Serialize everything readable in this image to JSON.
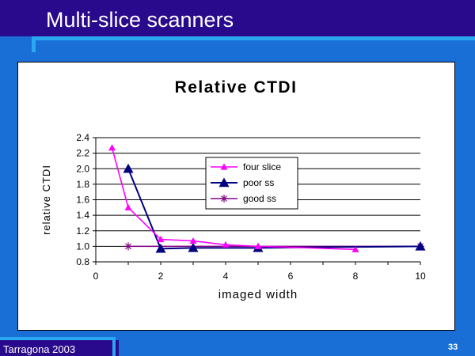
{
  "slide": {
    "title": "Multi-slice scanners",
    "footer": "Tarragona 2003",
    "page_number": "33"
  },
  "colors": {
    "background": "#1a6fd6",
    "topbar": "#2a0a8c",
    "accent": "#2aa7f0",
    "four_slice": "#ff00ff",
    "poor_ss": "#000080",
    "good_ss": "#800080"
  },
  "chart_data": {
    "type": "line",
    "title": "Relative CTDI",
    "xlabel": "imaged width",
    "ylabel": "relative CTDI",
    "xlim": [
      0,
      10
    ],
    "ylim": [
      0.8,
      2.4
    ],
    "x_ticks": [
      0,
      2,
      4,
      6,
      8,
      10
    ],
    "y_ticks": [
      "0.8",
      "1.0",
      "1.2",
      "1.4",
      "1.6",
      "1.8",
      "2.0",
      "2.2",
      "2.4"
    ],
    "grid": "horizontal",
    "legend_position": "inside-center",
    "series": [
      {
        "name": "four slice",
        "marker": "triangle",
        "color": "#ff00ff",
        "x": [
          0.5,
          1,
          2,
          3,
          4,
          5,
          8
        ],
        "y": [
          2.27,
          1.5,
          1.09,
          1.07,
          1.02,
          1.0,
          0.96
        ]
      },
      {
        "name": "poor ss",
        "marker": "triangle",
        "color": "#000080",
        "x": [
          1,
          2,
          3,
          5,
          10
        ],
        "y": [
          2.0,
          0.97,
          0.98,
          0.98,
          1.0
        ]
      },
      {
        "name": "good ss",
        "marker": "star",
        "color": "#800080",
        "x": [
          1,
          10
        ],
        "y": [
          1.0,
          1.0
        ]
      }
    ]
  }
}
